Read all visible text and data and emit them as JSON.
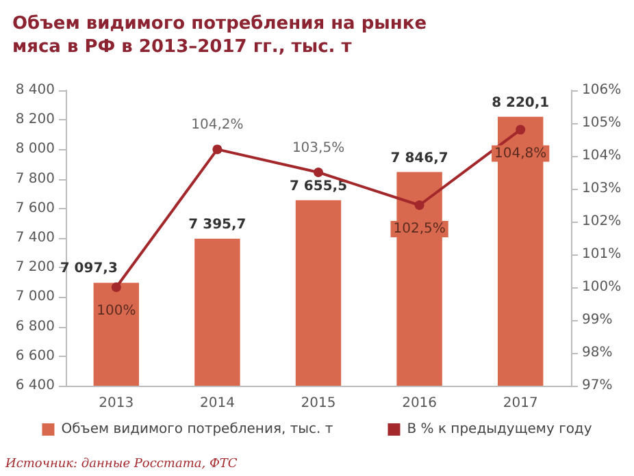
{
  "chart_data": {
    "type": "bar",
    "title": "Объем видимого потребления на рынке мяса в РФ в 2013–2017 гг., тыс. т",
    "categories": [
      "2013",
      "2014",
      "2015",
      "2016",
      "2017"
    ],
    "series": [
      {
        "name": "Объем видимого потребления, тыс. т",
        "color": "#d9694e",
        "values": [
          7097.3,
          7395.7,
          7655.5,
          7846.7,
          8220.1
        ],
        "value_labels": [
          "7 097,3",
          "7 395,7",
          "7 655,5",
          "7 846,7",
          "8 220,1"
        ]
      },
      {
        "name": "В % к предыдущему году",
        "type": "line",
        "axis": "y2",
        "color": "#a3282c",
        "values": [
          100,
          104.2,
          103.5,
          102.5,
          104.8
        ],
        "value_labels": [
          "100%",
          "104,2%",
          "103,5%",
          "102,5%",
          "104,8%"
        ]
      }
    ],
    "ylim": [
      6400,
      8400
    ],
    "yticks": [
      {
        "value": 6400,
        "label": "6 400"
      },
      {
        "value": 6600,
        "label": "6 600"
      },
      {
        "value": 6800,
        "label": "6 800"
      },
      {
        "value": 7000,
        "label": "7 000"
      },
      {
        "value": 7200,
        "label": "7 200"
      },
      {
        "value": 7400,
        "label": "7 400"
      },
      {
        "value": 7600,
        "label": "7 600"
      },
      {
        "value": 7800,
        "label": "7 800"
      },
      {
        "value": 8000,
        "label": "8 000"
      },
      {
        "value": 8200,
        "label": "8 200"
      },
      {
        "value": 8400,
        "label": "8 400"
      }
    ],
    "y2lim": [
      97,
      106
    ],
    "y2ticks": [
      {
        "value": 97,
        "label": "97%"
      },
      {
        "value": 98,
        "label": "98%"
      },
      {
        "value": 99,
        "label": "99%"
      },
      {
        "value": 100,
        "label": "100%"
      },
      {
        "value": 101,
        "label": "101%"
      },
      {
        "value": 102,
        "label": "102%"
      },
      {
        "value": 103,
        "label": "103%"
      },
      {
        "value": 104,
        "label": "104%"
      },
      {
        "value": 105,
        "label": "105%"
      },
      {
        "value": 106,
        "label": "106%"
      }
    ],
    "grid": false,
    "legend": "bottom",
    "marker": "circle",
    "line_style": "solid",
    "annotations": [
      "Источник: данные Росстата, ФТС"
    ]
  }
}
